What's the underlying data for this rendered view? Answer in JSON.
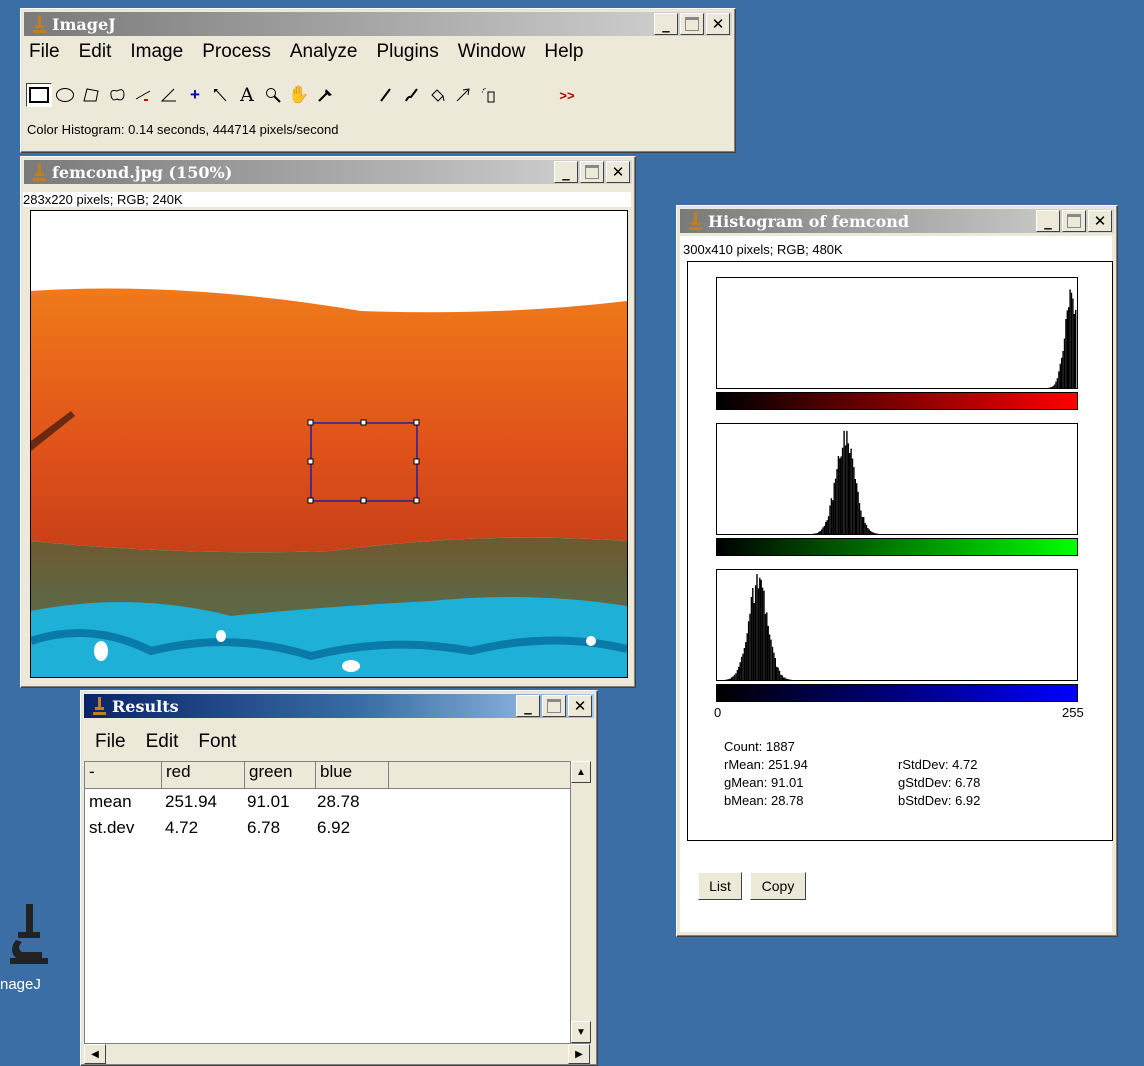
{
  "colors": {
    "desktop": "#3a6ea5",
    "active_title": "#0a246a",
    "inactive_title": "#808080",
    "red_channel": "#ff0000",
    "green_channel": "#00ff00",
    "blue_channel": "#0000ff"
  },
  "desktop": {
    "imagej_icon_label": "nageJ"
  },
  "main_window": {
    "title": "ImageJ",
    "menu": [
      "File",
      "Edit",
      "Image",
      "Process",
      "Analyze",
      "Plugins",
      "Window",
      "Help"
    ],
    "tools": [
      "rectangle-selection",
      "oval-selection",
      "polygon-selection",
      "freehand-selection",
      "line-selection",
      "angle-tool",
      "point-tool",
      "wand-tool",
      "text-tool",
      "magnifier-tool",
      "hand-tool",
      "color-picker",
      "pencil-tool",
      "brush-tool",
      "flood-fill-tool",
      "arrow-tool",
      "spray-can-tool"
    ],
    "more_tools": ">>",
    "status": "Color Histogram: 0.14 seconds, 444714 pixels/second"
  },
  "image_window": {
    "title": "femcond.jpg (150%)",
    "info": "283x220 pixels; RGB; 240K"
  },
  "histogram_window": {
    "title": "Histogram of femcond",
    "info": "300x410 pixels; RGB; 480K",
    "axis_min": "0",
    "axis_max": "255",
    "stats": {
      "count": "Count: 1887",
      "rmean": "rMean: 251.94",
      "gmean": "gMean: 91.01",
      "bmean": "bMean: 28.78",
      "rstd": "rStdDev: 4.72",
      "gstd": "gStdDev: 6.78",
      "bstd": "bStdDev: 6.92"
    },
    "buttons": {
      "list": "List",
      "copy": "Copy"
    },
    "channels": [
      {
        "name": "red",
        "mean": 251.94,
        "stddev": 4.72
      },
      {
        "name": "green",
        "mean": 91.01,
        "stddev": 6.78
      },
      {
        "name": "blue",
        "mean": 28.78,
        "stddev": 6.92
      }
    ]
  },
  "results_window": {
    "title": "Results",
    "menu": [
      "File",
      "Edit",
      "Font"
    ],
    "columns": [
      "-",
      "red",
      "green",
      "blue"
    ],
    "rows": [
      {
        "label": "mean",
        "red": "251.94",
        "green": "91.01",
        "blue": "28.78"
      },
      {
        "label": "st.dev",
        "red": "4.72",
        "green": "6.78",
        "blue": "6.92"
      }
    ]
  }
}
